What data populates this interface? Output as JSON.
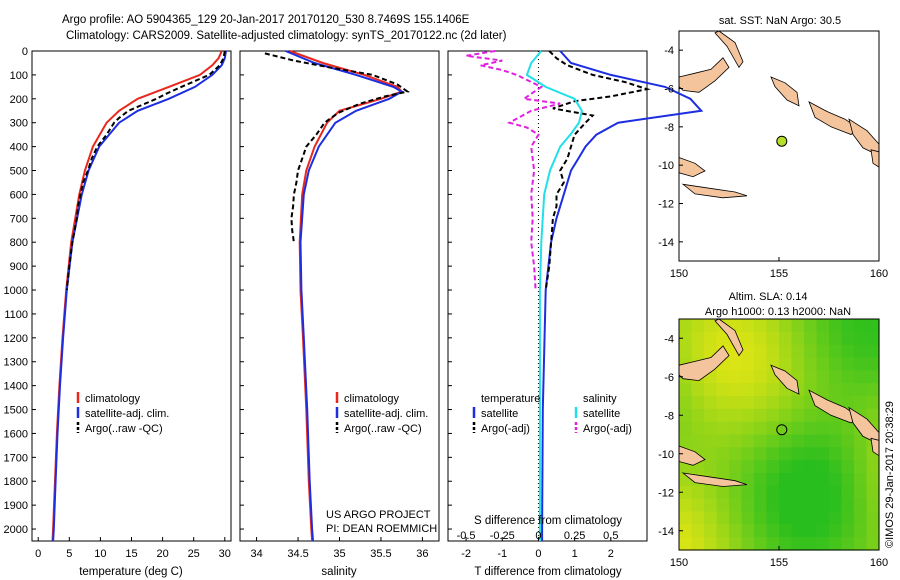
{
  "header": {
    "line1": "Argo profile: AO 5904365_129 20-Jan-2017 20170120_530 8.7469S 155.1406E",
    "line2": "Climatology: CARS2009. Satellite-adjusted climatology: synTS_20170122.nc (2d later)"
  },
  "side_stamp": "©IMOS 29-Jan-2017 20:38:29",
  "colors": {
    "clim": "#e8281e",
    "sat": "#1c2ee0",
    "argo": "#000000",
    "sat_s": "#20e0e8",
    "argo_s": "#e020e0",
    "land": "#f4c49c"
  },
  "chart_data": [
    {
      "type": "line",
      "id": "temperature",
      "xlabel": "temperature (deg C)",
      "ylabel": "",
      "xlim": [
        -1,
        31
      ],
      "ylim": [
        2050,
        0
      ],
      "xticks": [
        "0",
        "5",
        "10",
        "15",
        "20",
        "25",
        "30"
      ],
      "yticks": [
        "0",
        "100",
        "200",
        "300",
        "400",
        "500",
        "600",
        "700",
        "800",
        "900",
        "1000",
        "1100",
        "1200",
        "1300",
        "1400",
        "1500",
        "1600",
        "1700",
        "1800",
        "1900",
        "2000"
      ],
      "legend": [
        "climatology",
        "satellite-adj. clim.",
        "Argo(..raw -QC)"
      ],
      "series": [
        {
          "name": "climatology",
          "depth": [
            0,
            30,
            60,
            100,
            150,
            200,
            250,
            300,
            400,
            500,
            600,
            800,
            1000,
            1200,
            1400,
            1600,
            1800,
            2000,
            2050
          ],
          "values": [
            29.5,
            29,
            28,
            26,
            21,
            16,
            13,
            11,
            8.8,
            7.5,
            6.6,
            5.3,
            4.5,
            3.9,
            3.4,
            3.0,
            2.7,
            2.4,
            2.3
          ]
        },
        {
          "name": "satellite-adj. clim.",
          "depth": [
            0,
            30,
            60,
            100,
            150,
            200,
            250,
            300,
            400,
            500,
            600,
            800,
            1000,
            1200,
            1400,
            1600,
            1800,
            2000,
            2050
          ],
          "values": [
            30.2,
            30,
            29.5,
            28,
            25.2,
            21,
            16,
            13,
            9.8,
            8.1,
            7.0,
            5.5,
            4.6,
            4.0,
            3.5,
            3.1,
            2.8,
            2.5,
            2.4
          ]
        },
        {
          "name": "Argo(..raw -QC)",
          "depth": [
            0,
            30,
            60,
            100,
            150,
            180,
            200,
            250,
            280,
            300,
            350,
            400,
            450,
            500,
            550,
            600,
            650,
            700,
            800,
            900,
            1000
          ],
          "values": [
            30,
            29.8,
            29.2,
            27.5,
            23,
            20.5,
            19,
            14.5,
            13,
            12.2,
            11,
            9.5,
            8.6,
            8,
            7.2,
            6.8,
            6.4,
            6.2,
            5.5,
            5,
            4.6
          ]
        }
      ]
    },
    {
      "type": "line",
      "id": "salinity",
      "xlabel": "salinity",
      "ylabel": "",
      "xlim": [
        33.8,
        36.2
      ],
      "ylim": [
        2050,
        0
      ],
      "xticks": [
        "34",
        "34.5",
        "35",
        "35.5",
        "36"
      ],
      "legend": [
        "climatology",
        "satellite-adj. clim.",
        "Argo(..raw -QC)"
      ],
      "annotation": [
        "US ARGO PROJECT",
        "PI: DEAN ROEMMICH"
      ],
      "series": [
        {
          "name": "climatology",
          "depth": [
            0,
            50,
            100,
            150,
            170,
            200,
            250,
            300,
            400,
            500,
            600,
            800,
            1000,
            1200,
            1500,
            1800,
            2000,
            2050
          ],
          "values": [
            34.4,
            34.8,
            35.3,
            35.7,
            35.75,
            35.5,
            35.0,
            34.85,
            34.7,
            34.6,
            34.55,
            34.52,
            34.53,
            34.56,
            34.6,
            34.63,
            34.66,
            34.67
          ]
        },
        {
          "name": "satellite-adj. clim.",
          "depth": [
            0,
            50,
            100,
            150,
            170,
            200,
            250,
            300,
            400,
            500,
            600,
            800,
            1000,
            1200,
            1500,
            1800,
            2000,
            2050
          ],
          "values": [
            34.35,
            34.7,
            35.2,
            35.65,
            35.75,
            35.6,
            35.2,
            34.95,
            34.75,
            34.63,
            34.57,
            34.53,
            34.54,
            34.57,
            34.61,
            34.64,
            34.67,
            34.68
          ]
        },
        {
          "name": "Argo(..raw -QC)",
          "depth": [
            10,
            40,
            70,
            100,
            140,
            170,
            190,
            220,
            260,
            300,
            350,
            400,
            450,
            500,
            550,
            600,
            650,
            700,
            750,
            800
          ],
          "values": [
            34.1,
            34.45,
            34.9,
            35.4,
            35.7,
            35.82,
            35.55,
            35.25,
            34.98,
            34.82,
            34.72,
            34.6,
            34.55,
            34.5,
            34.48,
            34.45,
            34.44,
            34.42,
            34.43,
            34.45
          ]
        }
      ]
    },
    {
      "type": "line",
      "id": "difference",
      "xlabel": "T difference from climatology",
      "x2label": "S difference from climatology",
      "xlim": [
        -2.5,
        3
      ],
      "ylim": [
        2050,
        0
      ],
      "xticks": [
        "-2",
        "-1",
        "0",
        "1",
        "2"
      ],
      "x2ticks": [
        "-0.5",
        "-0.25",
        "0",
        "0.25",
        "0.5"
      ],
      "legend_left": [
        "temperature",
        "satellite",
        "Argo(-adj)"
      ],
      "legend_right": [
        "salinity",
        "satellite",
        "Argo(-adj)"
      ],
      "series": [
        {
          "name": "temperature satellite",
          "depth": [
            0,
            50,
            100,
            150,
            200,
            250,
            300,
            350,
            400,
            450,
            500,
            600,
            700,
            800,
            1000,
            1500,
            2000,
            2050
          ],
          "values": [
            0.6,
            0.9,
            2,
            3.5,
            4.2,
            4.5,
            2.2,
            1.6,
            1.3,
            1.1,
            0.9,
            0.7,
            0.5,
            0.35,
            0.2,
            0.12,
            0.1,
            0.1
          ]
        },
        {
          "name": "temperature Argo(-adj)",
          "depth": [
            0,
            30,
            60,
            100,
            130,
            160,
            190,
            210,
            240,
            270,
            300,
            350,
            400,
            450,
            500,
            550,
            600,
            650,
            700,
            800,
            900,
            1000
          ],
          "values": [
            0.3,
            0.5,
            0.8,
            1.5,
            2.4,
            3,
            2.0,
            1.0,
            0.4,
            1.5,
            1.3,
            1.0,
            0.9,
            0.8,
            0.6,
            0.7,
            0.5,
            0.5,
            0.4,
            0.35,
            0.3,
            0.2
          ]
        },
        {
          "name": "salinity satellite",
          "depth": [
            0,
            50,
            100,
            150,
            200,
            250,
            300,
            350,
            400,
            500,
            600,
            800,
            1000,
            1500,
            2000,
            2050
          ],
          "values": [
            0.02,
            -0.05,
            -0.08,
            0.05,
            0.25,
            0.3,
            0.28,
            0.22,
            0.15,
            0.08,
            0.04,
            0.02,
            0.01,
            0.01,
            0.01,
            0.01
          ]
        },
        {
          "name": "salinity Argo(-adj)",
          "depth": [
            0,
            20,
            40,
            60,
            80,
            100,
            150,
            200,
            220,
            250,
            300,
            320,
            350,
            400,
            500,
            600,
            700,
            800,
            900,
            1000
          ],
          "values": [
            -0.3,
            -0.5,
            -0.25,
            -0.4,
            -0.25,
            -0.15,
            0.02,
            -0.1,
            0.15,
            -0.05,
            -0.2,
            -0.08,
            0.0,
            -0.05,
            -0.03,
            -0.05,
            -0.04,
            -0.05,
            -0.03,
            -0.02
          ]
        }
      ]
    },
    {
      "type": "scatter",
      "id": "sst_map",
      "title": "sat. SST: NaN Argo: 30.5",
      "xlim": [
        150,
        160
      ],
      "ylim": [
        -15,
        -3
      ],
      "xticks": [
        "150",
        "155",
        "160"
      ],
      "yticks": [
        "-4",
        "-6",
        "-8",
        "-10",
        "-12",
        "-14"
      ],
      "point": {
        "lon": 155.14,
        "lat": -8.75
      }
    },
    {
      "type": "heatmap",
      "id": "sla_map",
      "title_line1": "Altim. SLA: 0.14",
      "title_line2": "Argo h1000: 0.13 h2000: NaN",
      "xlim": [
        150,
        160
      ],
      "ylim": [
        -15,
        -3
      ],
      "xticks": [
        "150",
        "155",
        "160"
      ],
      "yticks": [
        "-4",
        "-6",
        "-8",
        "-10",
        "-12",
        "-14"
      ],
      "point": {
        "lon": 155.14,
        "lat": -8.75
      }
    }
  ]
}
